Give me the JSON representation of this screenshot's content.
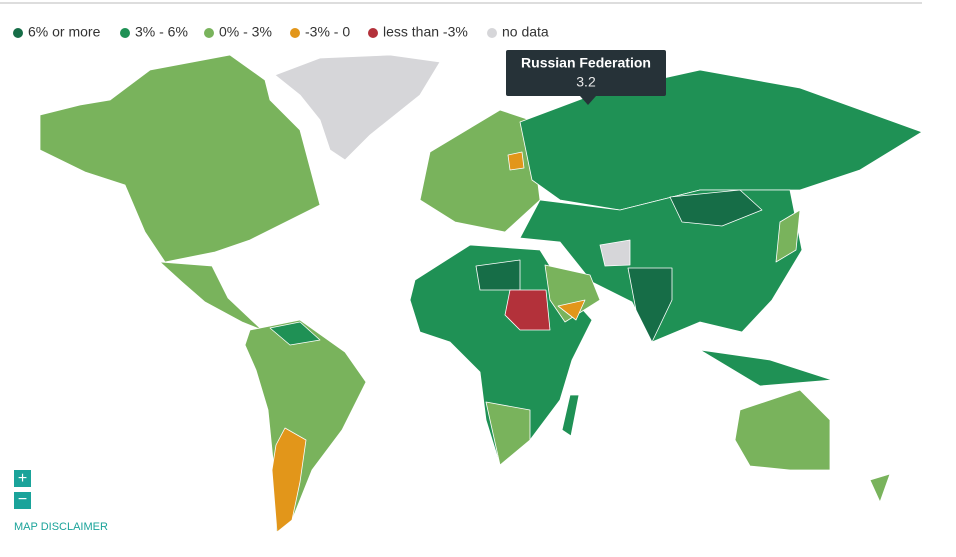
{
  "legend": {
    "items": [
      {
        "label": "6% or more",
        "color": "#166d47"
      },
      {
        "label": "3% - 6%",
        "color": "#1f9155"
      },
      {
        "label": "0% - 3%",
        "color": "#79b35c"
      },
      {
        "label": "-3% - 0",
        "color": "#e2961a"
      },
      {
        "label": "less than -3%",
        "color": "#b3313a"
      },
      {
        "label": "no data",
        "color": "#d6d6d9"
      }
    ]
  },
  "tooltip": {
    "country": "Russian Federation",
    "value": "3.2"
  },
  "controls": {
    "zoom_in": "+",
    "zoom_out": "−",
    "disclaimer": "MAP DISCLAIMER"
  }
}
